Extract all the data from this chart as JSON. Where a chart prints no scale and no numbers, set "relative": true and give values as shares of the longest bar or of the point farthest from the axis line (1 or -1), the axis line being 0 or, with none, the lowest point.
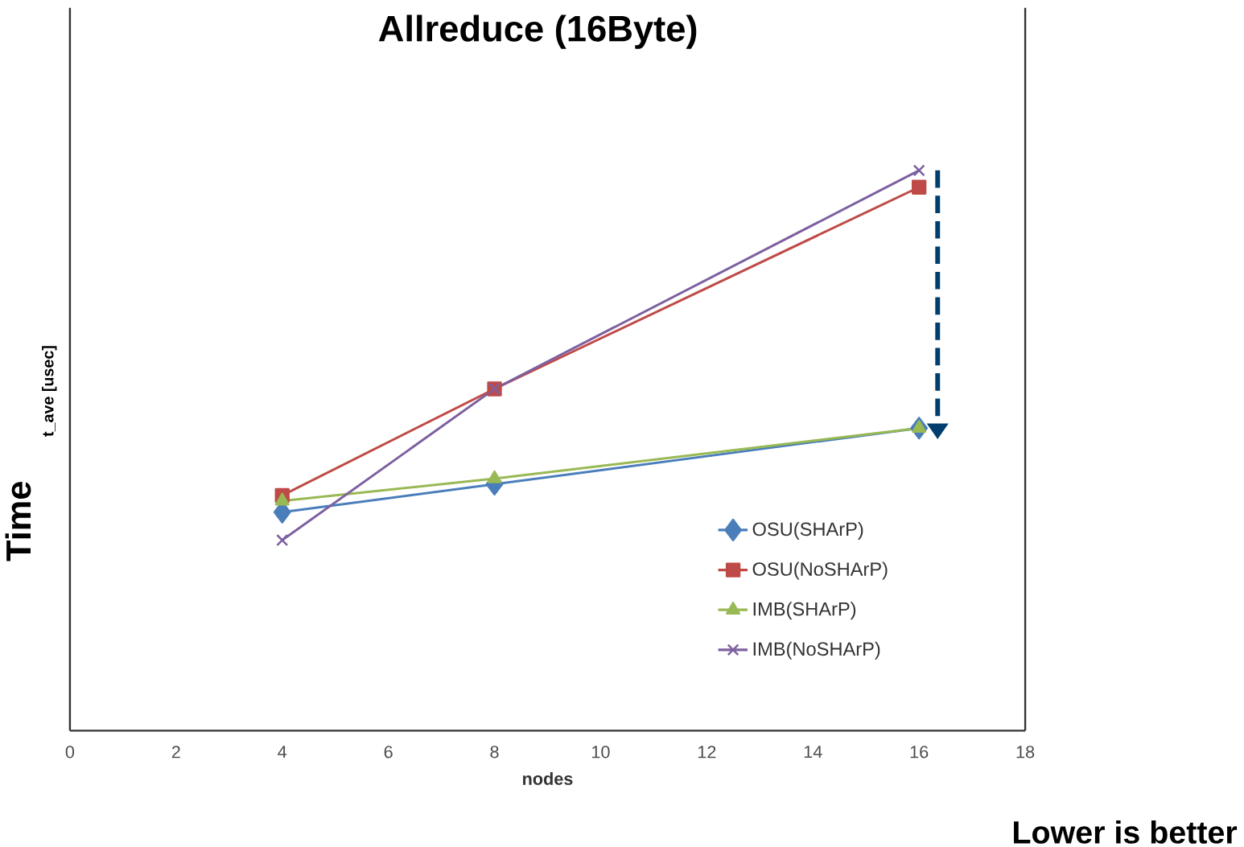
{
  "chart_data": {
    "type": "line",
    "title": "Allreduce (16Byte)",
    "xlabel": "nodes",
    "ylabel": "t_ave [usec]",
    "annotations": [
      "Time",
      "Lower is better"
    ],
    "x": [
      4,
      8,
      16
    ],
    "xlim": [
      0,
      18
    ],
    "xticks": [
      0,
      2,
      4,
      6,
      8,
      10,
      12,
      14,
      16,
      18
    ],
    "relative": true,
    "legend": "bottom right",
    "grid": false,
    "series": [
      {
        "name": "OSU(SHArP)",
        "color": "#4a7ebb",
        "marker": "diamond",
        "values": [
          0.39,
          0.44,
          0.54
        ]
      },
      {
        "name": "OSU(NoSHArP)",
        "color": "#be4b48",
        "marker": "square",
        "values": [
          0.42,
          0.61,
          0.97
        ]
      },
      {
        "name": "IMB(SHArP)",
        "color": "#98b954",
        "marker": "triangle",
        "values": [
          0.41,
          0.45,
          0.54
        ]
      },
      {
        "name": "IMB(NoSHArP)",
        "color": "#7d60a0",
        "marker": "cross",
        "values": [
          0.34,
          0.61,
          1
        ]
      }
    ]
  }
}
